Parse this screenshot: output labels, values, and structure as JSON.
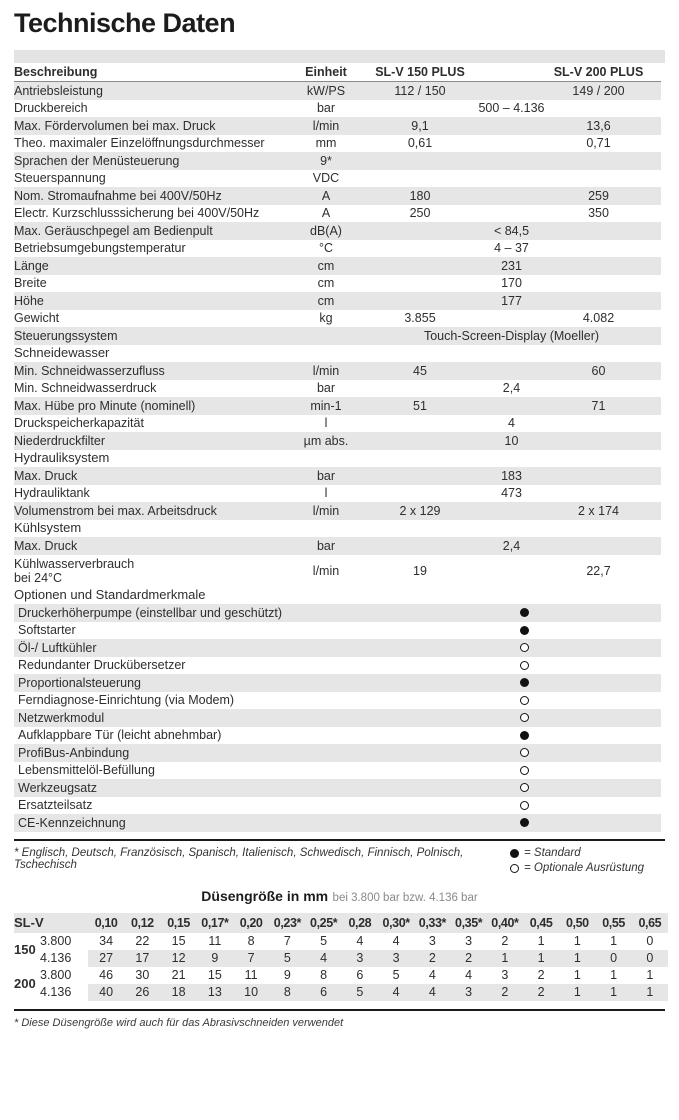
{
  "page": {
    "title": "Technische Daten"
  },
  "colors": {
    "stripe": "#e6e6e6",
    "band": "#e3e3e3",
    "text": "#2e2e2e"
  },
  "spec_table": {
    "headers": {
      "description": "Beschreibung",
      "unit": "Einheit",
      "model1": "SL-V 150 PLUS",
      "model2": "SL-V 200 PLUS"
    },
    "sections": [
      {
        "heading": null,
        "rows": [
          {
            "label": "Antriebsleistung",
            "unit": "kW/PS",
            "v1": "112 / 150",
            "v2": "149 / 200"
          },
          {
            "label": "Druckbereich",
            "unit": "bar",
            "span": "500 – 4.136"
          },
          {
            "label": "Max. Fördervolumen bei max. Druck",
            "unit": "l/min",
            "v1": "9,1",
            "v2": "13,6"
          },
          {
            "label": "Theo. maximaler Einzelöffnungsdurchmesser",
            "unit": "mm",
            "v1": "0,61",
            "v2": "0,71"
          },
          {
            "label": "Sprachen der Menüsteuerung",
            "unit": "9*"
          },
          {
            "label": "Steuerspannung",
            "unit": "VDC"
          },
          {
            "label": "Nom. Stromaufnahme bei 400V/50Hz",
            "unit": "A",
            "v1": "180",
            "v2": "259"
          },
          {
            "label": "Electr. Kurzschlusssicherung bei 400V/50Hz",
            "unit": "A",
            "v1": "250",
            "v2": "350"
          },
          {
            "label": "Max. Geräuschpegel am Bedienpult",
            "unit": "dB(A)",
            "span": "< 84,5"
          },
          {
            "label": "Betriebsumgebungstemperatur",
            "unit": "°C",
            "span": "4 – 37"
          },
          {
            "label": "Länge",
            "unit": "cm",
            "span": "231"
          },
          {
            "label": "Breite",
            "unit": "cm",
            "span": "170"
          },
          {
            "label": "Höhe",
            "unit": "cm",
            "span": "177"
          },
          {
            "label": "Gewicht",
            "unit": "kg",
            "v1": "3.855",
            "v2": "4.082"
          },
          {
            "label": "Steuerungssystem",
            "unit": "",
            "span": "Touch-Screen-Display (Moeller)"
          }
        ]
      },
      {
        "heading": "Schneidewasser",
        "rows": [
          {
            "label": "Min. Schneidwasserzufluss",
            "unit": "l/min",
            "v1": "45",
            "v2": "60"
          },
          {
            "label": "Min. Schneidwasserdruck",
            "unit": "bar",
            "span": "2,4"
          },
          {
            "label": "Max. Hübe pro Minute (nominell)",
            "unit": "min-1",
            "v1": "51",
            "v2": "71"
          },
          {
            "label": "Druckspeicherkapazität",
            "unit": "l",
            "span": "4"
          },
          {
            "label": "Niederdruckfilter",
            "unit": "µm abs.",
            "span": "10"
          }
        ]
      },
      {
        "heading": "Hydrauliksystem",
        "rows": [
          {
            "label": "Max. Druck",
            "unit": "bar",
            "span": "183"
          },
          {
            "label": "Hydrauliktank",
            "unit": "l",
            "span": "473"
          },
          {
            "label": "Volumenstrom bei max. Arbeitsdruck",
            "unit": "l/min",
            "v1": "2 x 129",
            "v2": "2 x 174"
          }
        ]
      },
      {
        "heading": "Kühlsystem",
        "rows": [
          {
            "label": "Max. Druck",
            "unit": "bar",
            "span": "2,4"
          },
          {
            "label": "Kühlwasserverbrauch",
            "label2": "bei 24°C",
            "unit": "l/min",
            "v1": "19",
            "v2": "22,7"
          }
        ]
      }
    ]
  },
  "options": {
    "heading": "Optionen und Standardmerkmale",
    "items": [
      {
        "label": "Druckerhöherpumpe (einstellbar und geschützt)",
        "state": "standard"
      },
      {
        "label": "Softstarter",
        "state": "standard"
      },
      {
        "label": "Öl-/ Luftkühler",
        "state": "optional"
      },
      {
        "label": "Redundanter Druckübersetzer",
        "state": "optional"
      },
      {
        "label": "Proportionalsteuerung",
        "state": "standard"
      },
      {
        "label": "Ferndiagnose-Einrichtung (via Modem)",
        "state": "optional"
      },
      {
        "label": "Netzwerkmodul",
        "state": "optional"
      },
      {
        "label": "Aufklappbare Tür (leicht abnehmbar)",
        "state": "standard"
      },
      {
        "label": "ProfiBus-Anbindung",
        "state": "optional"
      },
      {
        "label": "Lebensmittelöl-Befüllung",
        "state": "optional"
      },
      {
        "label": "Werkzeugsatz",
        "state": "optional"
      },
      {
        "label": "Ersatzteilsatz",
        "state": "optional"
      },
      {
        "label": "CE-Kennzeichnung",
        "state": "standard"
      }
    ]
  },
  "footnotes": {
    "languages": "* Englisch, Deutsch, Französisch, Spanisch, Italienisch, Schwedisch, Finnisch, Polnisch, Tschechisch",
    "legend_standard": "= Standard",
    "legend_optional": "= Optionale Ausrüstung"
  },
  "nozzle_table": {
    "title_bold": "Düsengröße in mm",
    "title_sub": "bei 3.800 bar bzw. 4.136 bar",
    "header_label": "SL-V",
    "sizes": [
      "0,10",
      "0,12",
      "0,15",
      "0,17*",
      "0,20",
      "0,23*",
      "0,25*",
      "0,28",
      "0,30*",
      "0,33*",
      "0,35*",
      "0,40*",
      "0,45",
      "0,50",
      "0,55",
      "0,65"
    ],
    "rows": [
      {
        "model": "150",
        "pressure": "3.800",
        "values": [
          34,
          22,
          15,
          11,
          8,
          7,
          5,
          4,
          4,
          3,
          3,
          2,
          1,
          1,
          1,
          0
        ]
      },
      {
        "model": "150",
        "pressure": "4.136",
        "values": [
          27,
          17,
          12,
          9,
          7,
          5,
          4,
          3,
          3,
          2,
          2,
          1,
          1,
          1,
          0,
          0
        ]
      },
      {
        "model": "200",
        "pressure": "3.800",
        "values": [
          46,
          30,
          21,
          15,
          11,
          9,
          8,
          6,
          5,
          4,
          4,
          3,
          2,
          1,
          1,
          1
        ]
      },
      {
        "model": "200",
        "pressure": "4.136",
        "values": [
          40,
          26,
          18,
          13,
          10,
          8,
          6,
          5,
          4,
          4,
          3,
          2,
          2,
          1,
          1,
          1
        ]
      }
    ],
    "footnote": "* Diese Düsengröße wird auch für das Abrasivschneiden verwendet"
  }
}
